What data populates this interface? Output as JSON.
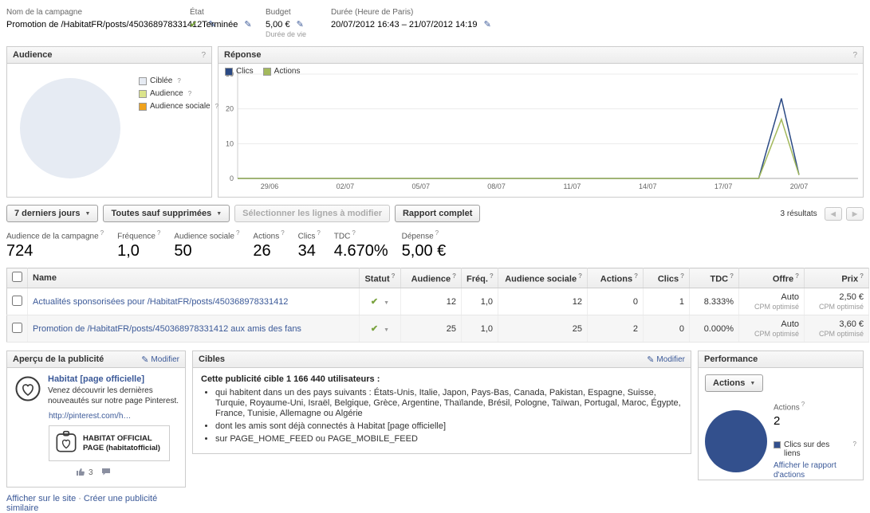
{
  "glyphs": {
    "help": "?",
    "pencil": "✎",
    "check": "✔",
    "caret": "▼",
    "caret_small": "▼",
    "prev": "◀",
    "next": "▶",
    "dot": "·"
  },
  "header": {
    "fields": [
      {
        "label": "Nom de la campagne",
        "value": "Promotion de /HabitatFR/posts/450368978331412"
      },
      {
        "label": "État",
        "value": "Terminée"
      },
      {
        "label": "Budget",
        "value": "5,00 €",
        "sub": "Durée de vie"
      },
      {
        "label": "Durée (Heure de Paris)",
        "value": "20/07/2012 16:43 – 21/07/2012 14:19"
      }
    ]
  },
  "audience_panel": {
    "title": "Audience"
  },
  "response_panel": {
    "title": "Réponse"
  },
  "toolbar": {
    "date_range": "7 derniers jours",
    "filter": "Toutes sauf supprimées",
    "select_rows": "Sélectionner les lignes à modifier",
    "full_report": "Rapport complet",
    "results": "3 résultats"
  },
  "stats": [
    {
      "label": "Audience de la campagne",
      "value": "724"
    },
    {
      "label": "Fréquence",
      "value": "1,0"
    },
    {
      "label": "Audience sociale",
      "value": "50"
    },
    {
      "label": "Actions",
      "value": "26"
    },
    {
      "label": "Clics",
      "value": "34"
    },
    {
      "label": "TDC",
      "value": "4.670%"
    },
    {
      "label": "Dépense",
      "value": "5,00 €"
    }
  ],
  "table": {
    "headers": [
      "Name",
      "Statut",
      "Audience",
      "Fréq.",
      "Audience sociale",
      "Actions",
      "Clics",
      "TDC",
      "Offre",
      "Prix"
    ],
    "rows": [
      {
        "name": "Actualités sponsorisées pour /HabitatFR/posts/450368978331412",
        "audience": "12",
        "freq": "1,0",
        "audience_sociale": "12",
        "actions": "0",
        "clics": "1",
        "tdc": "8.333%",
        "offre": "Auto",
        "offre_sub": "CPM optimisé",
        "prix": "2,50 €",
        "prix_sub": "CPM optimisé"
      },
      {
        "name": "Promotion de /HabitatFR/posts/450368978331412 aux amis des fans",
        "audience": "25",
        "freq": "1,0",
        "audience_sociale": "25",
        "actions": "2",
        "clics": "0",
        "tdc": "0.000%",
        "offre": "Auto",
        "offre_sub": "CPM optimisé",
        "prix": "3,60 €",
        "prix_sub": "CPM optimisé"
      }
    ]
  },
  "preview": {
    "title": "Aperçu de la publicité",
    "modifier": "Modifier",
    "ad_title": "Habitat [page officielle]",
    "ad_body": "Venez découvrir les dernières nouveautés sur notre page Pinterest.",
    "ad_link": "http://pinterest.com/h…",
    "ad_image_text": "HABITAT OFFICIAL PAGE (habitatofficial)",
    "likes": "3",
    "footer_link_1": "Afficher sur le site",
    "footer_link_2": "Créer une publicité similaire"
  },
  "cibles": {
    "title": "Cibles",
    "modifier": "Modifier",
    "intro": "Cette publicité cible 1 166 440 utilisateurs :",
    "bullets": [
      "qui habitent dans un des pays suivants : États-Unis, Italie, Japon, Pays-Bas, Canada, Pakistan, Espagne, Suisse, Turquie, Royaume-Uni, Israël, Belgique, Grèce, Argentine, Thaïlande, Brésil, Pologne, Taïwan, Portugal, Maroc, Égypte, France, Tunisie, Allemagne ou Algérie",
      "dont les amis sont déjà connectés à Habitat [page officielle]",
      "sur PAGE_HOME_FEED ou PAGE_MOBILE_FEED"
    ]
  },
  "performance": {
    "title": "Performance",
    "actions_button": "Actions",
    "actions_label": "Actions",
    "actions_value": "2",
    "report_link": "Afficher le rapport d'actions"
  },
  "chart_data": [
    {
      "name": "response",
      "type": "line",
      "title": "Réponse",
      "x_labels": [
        "29/06",
        "02/07",
        "05/07",
        "08/07",
        "11/07",
        "14/07",
        "17/07",
        "20/07"
      ],
      "x_days": [
        0,
        3,
        6,
        9,
        12,
        15,
        18,
        21
      ],
      "ylim": [
        0,
        30
      ],
      "y_ticks": [
        0,
        10,
        20,
        30
      ],
      "legend_position": "top-left",
      "series": [
        {
          "name": "Clics",
          "color": "#2b4a84",
          "points": [
            [
              0,
              0
            ],
            [
              3,
              0
            ],
            [
              6,
              0
            ],
            [
              9,
              0
            ],
            [
              12,
              0
            ],
            [
              15,
              0
            ],
            [
              18,
              0
            ],
            [
              19.4,
              0
            ],
            [
              20.3,
              23
            ],
            [
              21,
              1
            ]
          ]
        },
        {
          "name": "Actions",
          "color": "#a3b95c",
          "points": [
            [
              0,
              0
            ],
            [
              3,
              0
            ],
            [
              6,
              0
            ],
            [
              9,
              0
            ],
            [
              12,
              0
            ],
            [
              15,
              0
            ],
            [
              18,
              0
            ],
            [
              19.4,
              0
            ],
            [
              20.3,
              17
            ],
            [
              21,
              1
            ]
          ]
        }
      ]
    },
    {
      "name": "audience",
      "type": "pie",
      "title": "Audience",
      "slices": [
        {
          "label": "Ciblée",
          "value": 1166440,
          "color": "#e6ebf3"
        },
        {
          "label": "Audience",
          "value": 724,
          "color": "#dbe48c"
        },
        {
          "label": "Audience sociale",
          "value": 50,
          "color": "#f0a21c"
        }
      ]
    },
    {
      "name": "performance",
      "type": "pie",
      "title": "Performance",
      "slices": [
        {
          "label": "Clics sur des liens",
          "value": 2,
          "color": "#33508d"
        }
      ]
    }
  ]
}
